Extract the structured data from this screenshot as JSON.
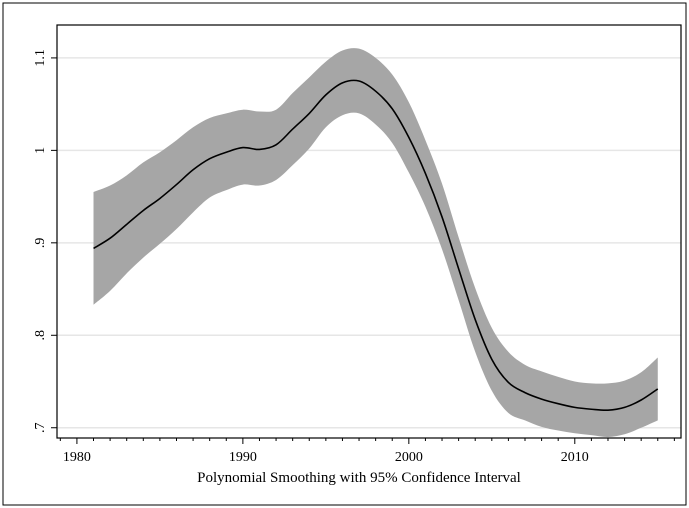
{
  "chart_data": {
    "type": "line",
    "title": "",
    "xlabel": "Polynomial Smoothing with 95% Confidence Interval",
    "ylabel": "",
    "xlim": [
      1978.8,
      2016.4
    ],
    "ylim": [
      0.6889,
      1.1356
    ],
    "grid": true,
    "legend": "none",
    "x_ticks": [
      1980,
      1990,
      2000,
      2010
    ],
    "x_tick_labels": [
      "1980",
      "1990",
      "2000",
      "2010"
    ],
    "y_ticks": [
      0.7,
      0.8,
      0.9,
      1.0,
      1.1
    ],
    "y_tick_labels": [
      ".7",
      ".8",
      ".9",
      "1",
      "1.1"
    ],
    "colors": {
      "line": "#000000",
      "band": "#a6a6a6",
      "grid": "#e6e6e6",
      "frame": "#000000"
    },
    "x": [
      1981,
      1982,
      1983,
      1984,
      1985,
      1986,
      1987,
      1988,
      1989,
      1990,
      1991,
      1992,
      1993,
      1994,
      1995,
      1996,
      1997,
      1998,
      1999,
      2000,
      2001,
      2002,
      2003,
      2004,
      2005,
      2006,
      2007,
      2008,
      2009,
      2010,
      2011,
      2012,
      2013,
      2014,
      2015
    ],
    "y": [
      0.894,
      0.905,
      0.92,
      0.935,
      0.948,
      0.963,
      0.979,
      0.991,
      0.998,
      1.003,
      1.001,
      1.006,
      1.023,
      1.04,
      1.06,
      1.073,
      1.075,
      1.064,
      1.045,
      1.014,
      0.975,
      0.928,
      0.872,
      0.817,
      0.774,
      0.749,
      0.738,
      0.731,
      0.726,
      0.722,
      0.72,
      0.719,
      0.722,
      0.73,
      0.742
    ],
    "lower": [
      0.833,
      0.848,
      0.867,
      0.884,
      0.899,
      0.915,
      0.933,
      0.949,
      0.957,
      0.963,
      0.962,
      0.968,
      0.984,
      1.002,
      1.025,
      1.038,
      1.04,
      1.028,
      1.008,
      0.976,
      0.939,
      0.893,
      0.838,
      0.782,
      0.74,
      0.716,
      0.708,
      0.701,
      0.697,
      0.694,
      0.692,
      0.69,
      0.693,
      0.7,
      0.708
    ],
    "upper": [
      0.955,
      0.962,
      0.973,
      0.987,
      0.998,
      1.011,
      1.025,
      1.035,
      1.04,
      1.044,
      1.042,
      1.044,
      1.062,
      1.079,
      1.096,
      1.108,
      1.11,
      1.1,
      1.082,
      1.052,
      1.011,
      0.964,
      0.906,
      0.851,
      0.808,
      0.782,
      0.768,
      0.761,
      0.755,
      0.75,
      0.748,
      0.748,
      0.751,
      0.76,
      0.776
    ]
  }
}
